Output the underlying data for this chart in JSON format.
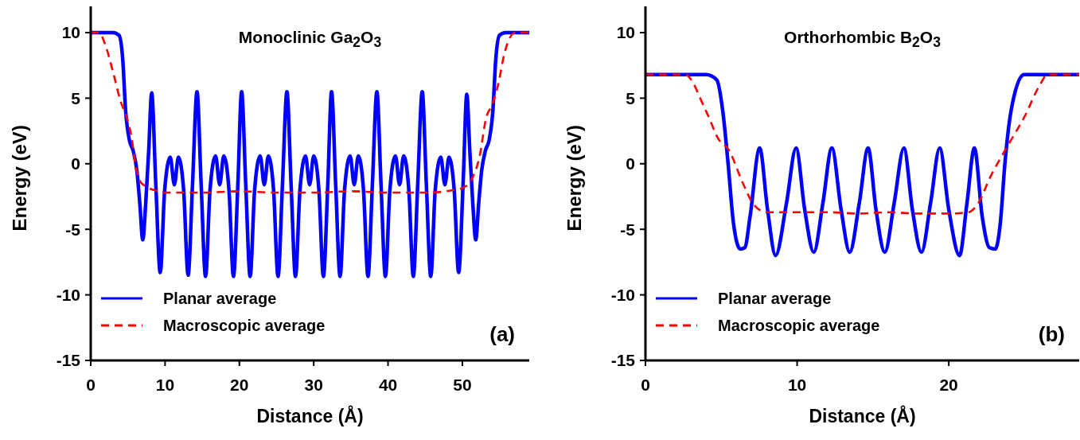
{
  "chart_data": [
    {
      "type": "line",
      "title": "Monoclinic Ga$_{2}$O$_{3}$",
      "xlabel": "Distance (Å)",
      "ylabel": "Energy (eV)",
      "annotations": [
        "(a)"
      ],
      "xlim": [
        0,
        59
      ],
      "xticks": [
        0,
        10,
        20,
        30,
        40,
        50
      ],
      "ylim": [
        -15,
        12
      ],
      "yticks": [
        -15,
        -10,
        -5,
        0,
        5,
        10
      ],
      "grid": false,
      "legend": "bottom left",
      "marker": "none",
      "series": [
        {
          "name": "Planar average",
          "color": "#0000ff",
          "line_style": "solid",
          "x": [
            0,
            3.0,
            3.8,
            4.3,
            4.7,
            5.2,
            5.7,
            6.2,
            6.6,
            7.0,
            7.4,
            7.8,
            8.2,
            8.75,
            9.35,
            9.95,
            10.7,
            11.25,
            11.8,
            12.5,
            13.1,
            13.7,
            14.3,
            14.85,
            15.45,
            16.05,
            16.8,
            17.35,
            17.9,
            18.6,
            19.2,
            19.8,
            20.3,
            20.85,
            21.45,
            22.05,
            22.8,
            23.35,
            23.9,
            24.6,
            25.2,
            25.8,
            26.4,
            26.95,
            27.55,
            28.15,
            28.9,
            29.45,
            30.0,
            30.7,
            31.3,
            31.9,
            32.4,
            32.95,
            33.55,
            34.15,
            34.9,
            35.45,
            36.0,
            36.7,
            37.3,
            37.9,
            38.5,
            39.05,
            39.65,
            40.25,
            41.0,
            41.55,
            42.1,
            42.8,
            43.4,
            44.0,
            44.6,
            45.15,
            45.75,
            46.35,
            47.1,
            47.65,
            48.2,
            48.9,
            49.5,
            50.1,
            50.6,
            51.0,
            51.4,
            51.8,
            52.2,
            52.6,
            53.1,
            53.6,
            54.1,
            54.5,
            55.0,
            55.8,
            59
          ],
          "values": [
            10,
            10,
            9.8,
            8,
            4,
            1.8,
            1.0,
            -0.5,
            -3,
            -5.8,
            -3,
            1,
            5.4,
            -1.5,
            -8.3,
            -2,
            0.5,
            -1.6,
            0.5,
            -2,
            -8.5,
            -1.5,
            5.5,
            -1.5,
            -8.6,
            -2,
            0.6,
            -1.6,
            0.6,
            -2,
            -8.6,
            -1.5,
            5.5,
            -1.5,
            -8.6,
            -2,
            0.6,
            -1.6,
            0.6,
            -2,
            -8.6,
            -1.5,
            5.5,
            -1.5,
            -8.6,
            -2,
            0.6,
            -1.6,
            0.6,
            -2,
            -8.6,
            -1.5,
            5.5,
            -1.5,
            -8.6,
            -2,
            0.6,
            -1.6,
            0.6,
            -2,
            -8.6,
            -1.5,
            5.5,
            -1.5,
            -8.6,
            -2,
            0.6,
            -1.6,
            0.6,
            -2,
            -8.6,
            -1.5,
            5.5,
            -1.5,
            -8.6,
            -2,
            0.5,
            -1.6,
            0.5,
            -2,
            -8.3,
            -1.5,
            5.3,
            1,
            -3,
            -5.8,
            -3,
            -0.5,
            1.0,
            1.8,
            4,
            8,
            9.8,
            10,
            10
          ]
        },
        {
          "name": "Macroscopic average",
          "color": "#ff0000",
          "line_style": "dashed",
          "x": [
            0,
            1.1,
            2,
            3,
            4,
            4.8,
            5.5,
            6,
            6.5,
            7.3,
            8.5,
            10,
            12,
            15,
            20,
            25,
            30,
            35,
            40,
            45,
            49,
            50.5,
            51.5,
            52.3,
            53.2,
            54,
            54.8,
            55.7,
            57.1,
            59
          ],
          "values": [
            10,
            10,
            9,
            7,
            4.8,
            3.6,
            2,
            0,
            -1.2,
            -1.7,
            -2.0,
            -2.2,
            -2.2,
            -2.2,
            -2.1,
            -2.2,
            -2.2,
            -2.1,
            -2.2,
            -2.2,
            -2.0,
            -1.7,
            -0.9,
            0.5,
            3.5,
            4.5,
            6,
            8.5,
            10,
            10
          ]
        }
      ]
    },
    {
      "type": "line",
      "title": "Orthorhombic B$_{2}$O$_{3}$",
      "xlabel": "Distance (Å)",
      "ylabel": "Energy (eV)",
      "annotations": [
        "(b)"
      ],
      "xlim": [
        0,
        28.6
      ],
      "xticks": [
        0,
        10,
        20
      ],
      "ylim": [
        -15,
        12
      ],
      "yticks": [
        -15,
        -10,
        -5,
        0,
        5,
        10
      ],
      "grid": false,
      "legend": "bottom left",
      "marker": "none",
      "series": [
        {
          "name": "Planar average",
          "color": "#0000ff",
          "line_style": "solid",
          "x": [
            0,
            4.0,
            4.7,
            5.1,
            5.45,
            5.8,
            6.25,
            6.55,
            6.9,
            7.53,
            8.05,
            8.58,
            9.3,
            9.93,
            10.5,
            11.1,
            11.7,
            12.29,
            12.9,
            13.47,
            14.1,
            14.68,
            15.2,
            15.78,
            16.4,
            17.04,
            17.6,
            18.2,
            18.8,
            19.4,
            20.0,
            20.71,
            21.2,
            21.69,
            22.2,
            22.68,
            23.07,
            23.4,
            23.7,
            24.1,
            24.96,
            28.6
          ],
          "values": [
            6.8,
            6.8,
            6.4,
            4,
            0,
            -4.5,
            -6.5,
            -6.4,
            -4,
            1.2,
            -3.5,
            -7.0,
            -3,
            1.2,
            -3.5,
            -6.75,
            -3,
            1.2,
            -3.5,
            -6.75,
            -3,
            1.2,
            -3.5,
            -6.75,
            -3,
            1.2,
            -3.5,
            -6.75,
            -3,
            1.2,
            -3.5,
            -7.0,
            -3,
            1.2,
            -4,
            -6.4,
            -6.5,
            -4.5,
            0,
            4,
            6.8,
            6.8
          ]
        },
        {
          "name": "Macroscopic average",
          "color": "#ff0000",
          "line_style": "dashed",
          "x": [
            0,
            2.6,
            4.0,
            4.86,
            5.47,
            6.43,
            7.13,
            8.0,
            10,
            12,
            14,
            16,
            18,
            20,
            21.3,
            22.0,
            22.7,
            23.9,
            25.0,
            26.0,
            26.5,
            28.6
          ],
          "values": [
            6.8,
            6.8,
            4.0,
            1.8,
            1.1,
            -1.5,
            -3.1,
            -3.7,
            -3.7,
            -3.7,
            -3.8,
            -3.7,
            -3.8,
            -3.8,
            -3.7,
            -2.9,
            -1.1,
            1.4,
            3.6,
            6.0,
            6.8,
            6.8
          ]
        }
      ]
    }
  ]
}
